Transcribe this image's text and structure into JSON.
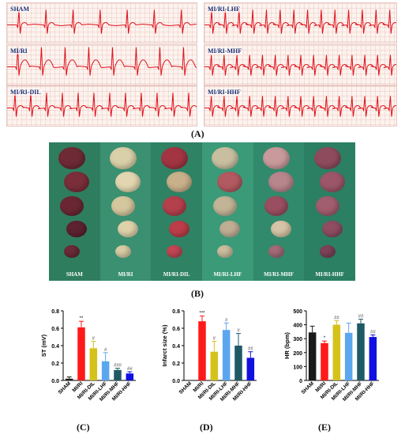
{
  "panelA": {
    "label": "(A)",
    "traces": [
      {
        "name": "SHAM"
      },
      {
        "name": "MI/RI"
      },
      {
        "name": "MI/RI-DIL"
      },
      {
        "name": "MI/RI-LHF"
      },
      {
        "name": "MI/RI-MHF"
      },
      {
        "name": "MI/RI-HHF"
      }
    ]
  },
  "panelB": {
    "label": "(B)",
    "groups": [
      "SHAM",
      "MI/RI",
      "MI/RI-DIL",
      "MI/RI-LHF",
      "MI/RI-MHF",
      "MI/RI-HHF"
    ]
  },
  "chart_data": [
    {
      "panel": "(C)",
      "type": "bar",
      "ylabel": "ST (mV)",
      "categories": [
        "SHAM",
        "MI/RI",
        "MI/RI-DIL",
        "MI/RI-LHF",
        "MI/RI-MHF",
        "MI/RI-HHF"
      ],
      "values": [
        0.02,
        0.61,
        0.37,
        0.22,
        0.12,
        0.08
      ],
      "errors": [
        0.02,
        0.07,
        0.08,
        0.1,
        0.02,
        0.02
      ],
      "colors": [
        "#1a1a1a",
        "#ff1a1a",
        "#d4c21a",
        "#5aa7f0",
        "#1e5a66",
        "#1010e0"
      ],
      "annotations": [
        "",
        "**",
        "#",
        "#",
        "###",
        "##"
      ],
      "ylim": [
        0,
        0.8
      ],
      "yticks": [
        0.0,
        0.2,
        0.4,
        0.6,
        0.8
      ]
    },
    {
      "panel": "(D)",
      "type": "bar",
      "ylabel": "Infarct size (%)",
      "categories": [
        "SHAM",
        "MI/RI",
        "MI/RI-DIL",
        "MI/RI-LHF",
        "MI/RI-MHF",
        "MI/RI-HHF"
      ],
      "values": [
        0,
        0.68,
        0.33,
        0.58,
        0.4,
        0.26
      ],
      "errors": [
        0,
        0.06,
        0.12,
        0.08,
        0.14,
        0.07
      ],
      "colors": [
        "#1a1a1a",
        "#ff1a1a",
        "#d4c21a",
        "#5aa7f0",
        "#1e5a66",
        "#1010e0"
      ],
      "annotations": [
        "",
        "***",
        "#",
        "#",
        "#",
        "##"
      ],
      "ylim": [
        0,
        0.8
      ],
      "yticks": [
        0.0,
        0.2,
        0.4,
        0.6,
        0.8
      ]
    },
    {
      "panel": "(E)",
      "type": "bar",
      "ylabel": "HR (bpm)",
      "categories": [
        "SHAM",
        "MI/RI",
        "MI/RI-DIL",
        "MI/RI-LHF",
        "MI/RI-MHF",
        "MI/RI-HHF"
      ],
      "values": [
        345,
        268,
        400,
        342,
        410,
        312
      ],
      "errors": [
        45,
        15,
        30,
        70,
        30,
        15
      ],
      "colors": [
        "#1a1a1a",
        "#ff1a1a",
        "#d4c21a",
        "#5aa7f0",
        "#1e5a66",
        "#1010e0"
      ],
      "annotations": [
        "",
        "*",
        "##",
        "",
        "##",
        "##"
      ],
      "ylim": [
        0,
        500
      ],
      "yticks": [
        0,
        100,
        200,
        300,
        400,
        500
      ]
    }
  ]
}
